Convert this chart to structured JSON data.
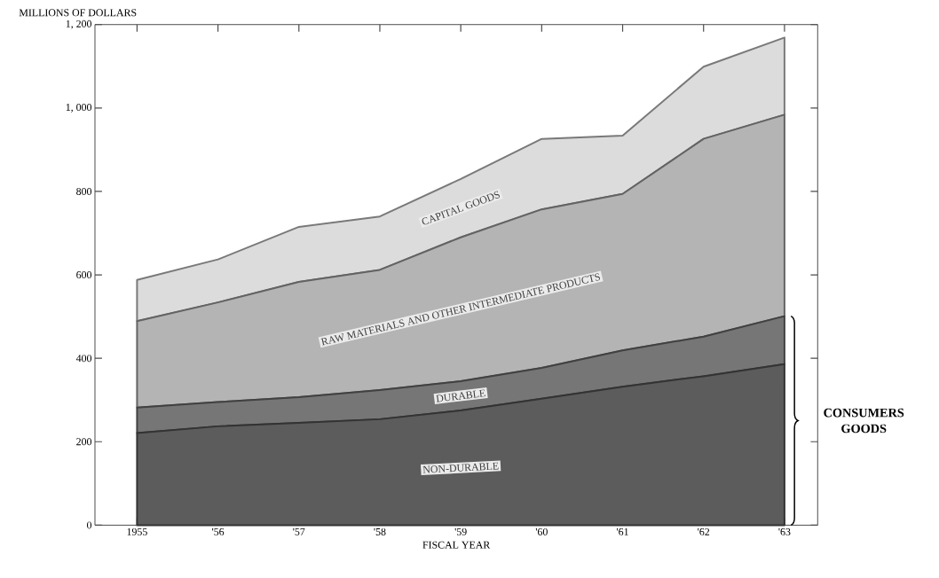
{
  "chart_data": {
    "type": "area",
    "stacked": true,
    "ylabel": "MILLIONS OF DOLLARS",
    "xlabel": "FISCAL YEAR",
    "categories": [
      "1955",
      "'56",
      "'57",
      "'58",
      "'59",
      "'60",
      "'61",
      "'62",
      "'63"
    ],
    "series": [
      {
        "name": "NON-DURABLE",
        "color": "#5c5c5c",
        "values": [
          221,
          237,
          245,
          254,
          275,
          303,
          332,
          357,
          386
        ]
      },
      {
        "name": "DURABLE",
        "color": "#767676",
        "values": [
          61,
          58,
          62,
          70,
          70,
          74,
          87,
          95,
          115
        ]
      },
      {
        "name": "RAW MATERIALS AND OTHER INTERMEDIATE PRODUCTS",
        "color": "#b4b4b4",
        "values": [
          207,
          239,
          276,
          288,
          345,
          380,
          375,
          474,
          483
        ]
      },
      {
        "name": "CAPITAL GOODS",
        "color": "#dcdcdc",
        "values": [
          99,
          103,
          132,
          128,
          140,
          169,
          140,
          173,
          185
        ]
      }
    ],
    "ylim": [
      0,
      1200
    ],
    "yticks": [
      0,
      200,
      400,
      600,
      800,
      {
        "value": 1000,
        "label": "1, 000"
      },
      {
        "value": 1200,
        "label": "1, 200"
      }
    ],
    "annotations": [
      "CONSUMERS GOODS"
    ]
  }
}
